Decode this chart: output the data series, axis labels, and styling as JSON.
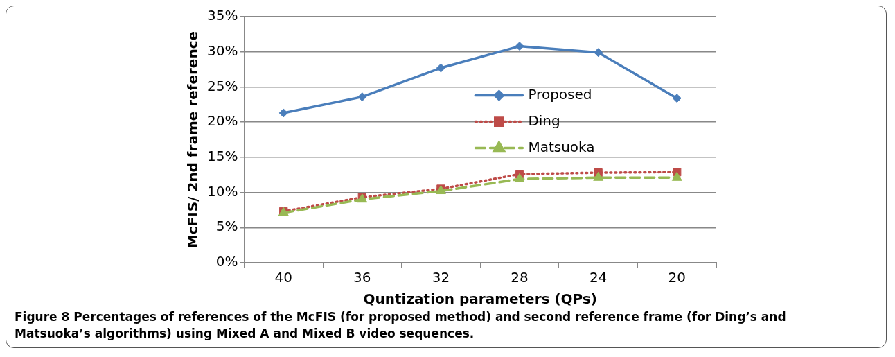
{
  "chart_data": {
    "type": "line",
    "xlabel": "Quntization parameters (QPs)",
    "ylabel": "McFIS/ 2nd frame reference",
    "categories": [
      "40",
      "36",
      "32",
      "28",
      "24",
      "20"
    ],
    "series": [
      {
        "name": "Proposed",
        "color": "#4a7ebb",
        "values": [
          21.3,
          23.6,
          27.7,
          30.8,
          29.9,
          23.4
        ],
        "marker": "diamond",
        "line_style": "solid"
      },
      {
        "name": "Ding",
        "color": "#be4b48",
        "values": [
          7.3,
          9.3,
          10.5,
          12.6,
          12.8,
          12.9
        ],
        "marker": "square",
        "line_style": "dotted"
      },
      {
        "name": "Matsuoka",
        "color": "#98b954",
        "values": [
          7.1,
          9.0,
          10.2,
          11.9,
          12.1,
          12.1
        ],
        "marker": "triangle",
        "line_style": "dashed"
      }
    ],
    "ylim": [
      0,
      35
    ],
    "yticks": [
      {
        "value": 0,
        "label": "0%"
      },
      {
        "value": 5,
        "label": "5%"
      },
      {
        "value": 10,
        "label": "10%"
      },
      {
        "value": 15,
        "label": "15%"
      },
      {
        "value": 20,
        "label": "20%"
      },
      {
        "value": 25,
        "label": "25%"
      },
      {
        "value": 30,
        "label": "30%"
      },
      {
        "value": 35,
        "label": "35%"
      }
    ],
    "grid": "y",
    "legend": "right",
    "annotations": [
      "Figure 8 Percentages of references of the McFIS (for proposed method) and second reference frame (for Ding’s and Matsuoka’s algorithms) using Mixed A and Mixed B video sequences."
    ]
  }
}
